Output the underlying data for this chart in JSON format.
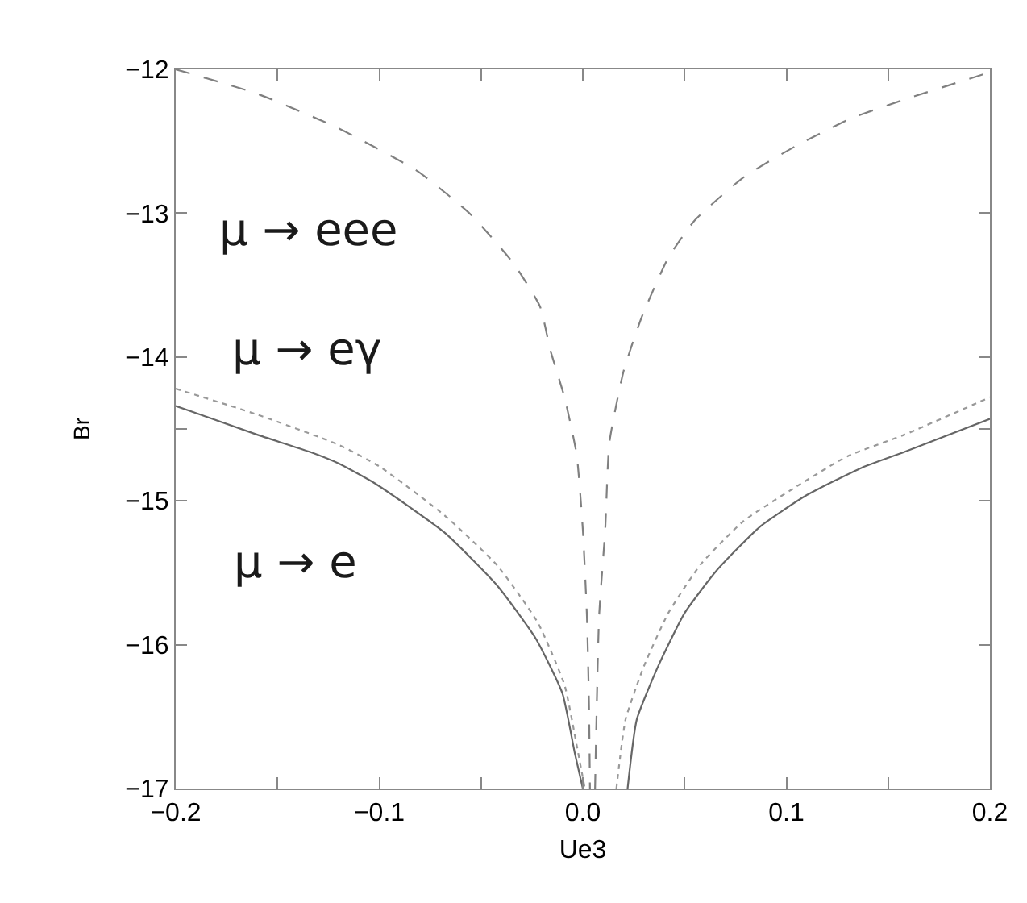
{
  "chart_data": {
    "type": "line",
    "xlabel": "Ue3",
    "ylabel": "Br",
    "xlim": [
      -0.2,
      0.2
    ],
    "ylim": [
      -17,
      -12
    ],
    "xticks": [
      {
        "value": -0.2,
        "label": "−0.2"
      },
      {
        "value": -0.15,
        "label": null
      },
      {
        "value": -0.1,
        "label": "−0.1"
      },
      {
        "value": -0.05,
        "label": null
      },
      {
        "value": 0,
        "label": "0.0"
      },
      {
        "value": 0.05,
        "label": null
      },
      {
        "value": 0.1,
        "label": "0.1"
      },
      {
        "value": 0.15,
        "label": null
      },
      {
        "value": 0.2,
        "label": "0.2"
      }
    ],
    "yticks": [
      {
        "value": -17,
        "label": "−17"
      },
      {
        "value": -16,
        "label": "−16"
      },
      {
        "value": -15,
        "label": "−15"
      },
      {
        "value": -14.5,
        "label": null
      },
      {
        "value": -14,
        "label": "−14"
      },
      {
        "value": -13,
        "label": "−13"
      },
      {
        "value": -12,
        "label": "−12"
      }
    ],
    "series": [
      {
        "color": "#808080",
        "line_style": "dashed",
        "x": [
          -0.2,
          -0.16,
          -0.12,
          -0.081,
          -0.055,
          -0.034,
          -0.021,
          -0.016,
          -0.009,
          -0.003,
          0.0,
          0.002,
          0.003,
          0.0035,
          null,
          0.006,
          0.008,
          0.011,
          0.013,
          0.02,
          0.029,
          0.042,
          0.055,
          0.079,
          0.105,
          0.132,
          0.158,
          0.2
        ],
        "values": [
          -12.0,
          -12.17,
          -12.41,
          -12.71,
          -13.01,
          -13.35,
          -13.65,
          -13.95,
          -14.28,
          -14.68,
          -15.2,
          -15.8,
          -16.4,
          -17.0,
          null,
          -17.0,
          -15.8,
          -15.2,
          -14.6,
          -14.1,
          -13.72,
          -13.31,
          -13.05,
          -12.75,
          -12.53,
          -12.34,
          -12.21,
          -12.02
        ]
      },
      {
        "color": "#999999",
        "line_style": "dotted",
        "x": [
          -0.2,
          -0.16,
          -0.12,
          -0.1,
          -0.068,
          -0.042,
          -0.022,
          -0.009,
          -0.003,
          0.001,
          null,
          0.0165,
          0.021,
          0.03,
          0.042,
          0.058,
          0.079,
          0.105,
          0.13,
          0.158,
          0.2
        ],
        "values": [
          -14.22,
          -14.4,
          -14.61,
          -14.76,
          -15.1,
          -15.45,
          -15.85,
          -16.28,
          -16.7,
          -17.0,
          null,
          -17.0,
          -16.52,
          -16.15,
          -15.78,
          -15.44,
          -15.14,
          -14.9,
          -14.69,
          -14.54,
          -14.28
        ]
      },
      {
        "color": "#666666",
        "line_style": "solid",
        "x": [
          -0.2,
          -0.16,
          -0.134,
          -0.12,
          -0.102,
          -0.068,
          -0.042,
          -0.023,
          -0.01,
          -0.004,
          0.0,
          null,
          0.022,
          0.0265,
          0.037,
          0.05,
          0.066,
          0.087,
          0.11,
          0.137,
          0.158,
          0.2
        ],
        "values": [
          -14.34,
          -14.54,
          -14.66,
          -14.74,
          -14.88,
          -15.22,
          -15.59,
          -15.96,
          -16.34,
          -16.75,
          -17.0,
          null,
          -17.0,
          -16.52,
          -16.15,
          -15.78,
          -15.48,
          -15.18,
          -14.96,
          -14.77,
          -14.66,
          -14.43
        ]
      }
    ],
    "annotations": [
      "μ → eee",
      "μ → eγ",
      "μ → e"
    ]
  }
}
